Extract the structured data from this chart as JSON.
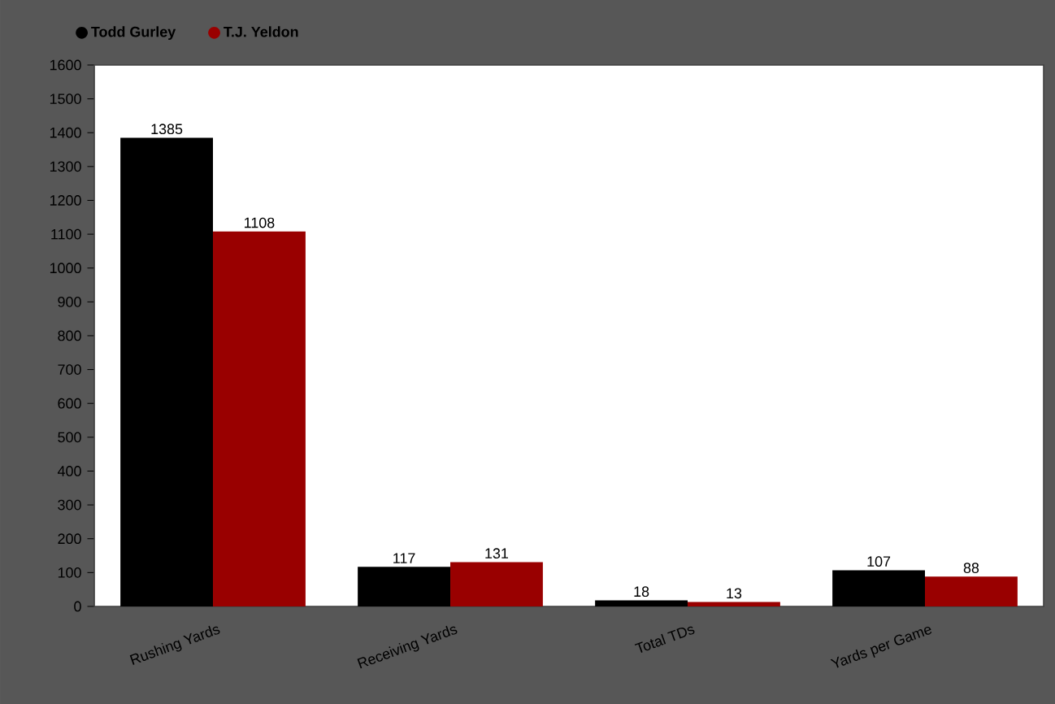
{
  "chart_data": {
    "type": "bar",
    "categories": [
      "Rushing Yards",
      "Receiving Yards",
      "Total TDs",
      "Yards per Game"
    ],
    "series": [
      {
        "name": "Todd Gurley",
        "color": "#000000",
        "values": [
          1385,
          117,
          18,
          107
        ]
      },
      {
        "name": "T.J. Yeldon",
        "color": "#990000",
        "values": [
          1108,
          131,
          13,
          88
        ]
      }
    ],
    "ylim": [
      0,
      1600
    ],
    "yticks": [
      0,
      100,
      200,
      300,
      400,
      500,
      600,
      700,
      800,
      900,
      1000,
      1100,
      1200,
      1300,
      1400,
      1500,
      1600
    ],
    "data_labels": true,
    "legend": "top left"
  }
}
